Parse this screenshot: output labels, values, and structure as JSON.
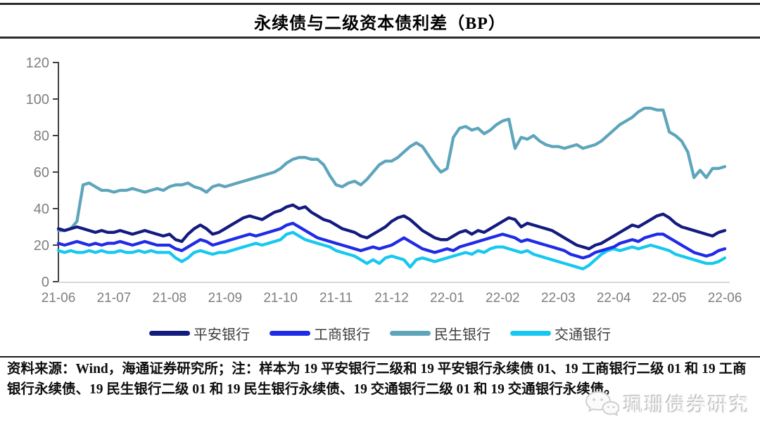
{
  "header": {
    "title": "永续债与二级资本债利差（BP）"
  },
  "chart_data": {
    "type": "line",
    "title": "永续债与二级资本债利差（BP）",
    "x_tick_labels": [
      "21-06",
      "21-07",
      "21-08",
      "21-09",
      "21-10",
      "21-11",
      "21-12",
      "22-01",
      "22-02",
      "22-03",
      "22-04",
      "22-05",
      "22-06"
    ],
    "y_ticks": [
      0,
      20,
      40,
      60,
      80,
      100,
      120
    ],
    "ylim": [
      0,
      120
    ],
    "grid": false,
    "legend_position": "bottom",
    "axis_color": "#404040",
    "tick_label_color": "#7f7f7f",
    "baseline_color": "#d9d9d9",
    "series": [
      {
        "name": "平安银行",
        "color": "#141B7F",
        "values": [
          29,
          28,
          29,
          30,
          29,
          28,
          27,
          28,
          27,
          27,
          28,
          27,
          26,
          27,
          28,
          27,
          26,
          25,
          26,
          23,
          22,
          26,
          29,
          31,
          29,
          26,
          27,
          29,
          31,
          33,
          35,
          36,
          35,
          34,
          36,
          38,
          39,
          41,
          42,
          40,
          41,
          38,
          36,
          34,
          33,
          31,
          29,
          28,
          27,
          25,
          24,
          26,
          28,
          30,
          33,
          35,
          36,
          34,
          31,
          28,
          26,
          24,
          23,
          23,
          25,
          27,
          28,
          26,
          28,
          27,
          29,
          31,
          33,
          35,
          34,
          30,
          32,
          31,
          30,
          29,
          28,
          26,
          24,
          22,
          20,
          19,
          18,
          20,
          21,
          23,
          25,
          27,
          29,
          31,
          30,
          32,
          34,
          36,
          37,
          35,
          32,
          30,
          29,
          28,
          27,
          26,
          25,
          27,
          28
        ]
      },
      {
        "name": "工商银行",
        "color": "#1F2BE6",
        "values": [
          21,
          20,
          21,
          22,
          21,
          20,
          21,
          20,
          21,
          21,
          22,
          21,
          20,
          21,
          22,
          21,
          20,
          20,
          20,
          18,
          17,
          19,
          21,
          23,
          22,
          20,
          21,
          22,
          23,
          24,
          25,
          26,
          25,
          26,
          27,
          28,
          29,
          31,
          32,
          30,
          28,
          26,
          24,
          23,
          22,
          21,
          20,
          19,
          18,
          17,
          18,
          19,
          18,
          19,
          20,
          22,
          24,
          22,
          20,
          18,
          17,
          16,
          17,
          18,
          17,
          19,
          20,
          21,
          22,
          23,
          24,
          25,
          26,
          25,
          24,
          22,
          23,
          22,
          21,
          20,
          19,
          18,
          17,
          15,
          14,
          13,
          14,
          16,
          17,
          18,
          19,
          21,
          22,
          23,
          22,
          24,
          25,
          26,
          26,
          24,
          22,
          20,
          18,
          16,
          15,
          14,
          15,
          17,
          18
        ]
      },
      {
        "name": "民生银行",
        "color": "#5EA5BC",
        "values": [
          28,
          28,
          29,
          33,
          53,
          54,
          52,
          50,
          50,
          49,
          50,
          50,
          51,
          50,
          49,
          50,
          51,
          50,
          52,
          53,
          53,
          54,
          52,
          51,
          49,
          52,
          53,
          52,
          53,
          54,
          55,
          56,
          57,
          58,
          59,
          60,
          62,
          65,
          67,
          68,
          68,
          67,
          67,
          64,
          58,
          53,
          52,
          54,
          55,
          53,
          56,
          60,
          64,
          66,
          66,
          68,
          71,
          74,
          76,
          74,
          69,
          64,
          60,
          62,
          79,
          84,
          85,
          83,
          84,
          81,
          83,
          86,
          88,
          89,
          73,
          79,
          78,
          80,
          77,
          75,
          74,
          74,
          73,
          74,
          75,
          73,
          74,
          75,
          77,
          80,
          83,
          86,
          88,
          90,
          93,
          95,
          95,
          94,
          94,
          82,
          80,
          77,
          71,
          57,
          61,
          57,
          62,
          62,
          63
        ]
      },
      {
        "name": "交通银行",
        "color": "#16C8F0",
        "values": [
          17,
          16,
          17,
          16,
          16,
          17,
          16,
          17,
          16,
          16,
          17,
          16,
          16,
          17,
          16,
          17,
          16,
          16,
          16,
          13,
          11,
          13,
          16,
          17,
          16,
          15,
          16,
          16,
          17,
          18,
          19,
          20,
          21,
          20,
          21,
          22,
          23,
          26,
          27,
          25,
          23,
          22,
          21,
          20,
          19,
          17,
          16,
          15,
          14,
          12,
          10,
          12,
          10,
          13,
          14,
          13,
          12,
          8,
          12,
          13,
          12,
          11,
          12,
          13,
          14,
          15,
          16,
          15,
          17,
          16,
          18,
          19,
          19,
          18,
          17,
          16,
          17,
          15,
          14,
          13,
          12,
          11,
          10,
          9,
          8,
          7,
          9,
          12,
          15,
          17,
          18,
          17,
          18,
          19,
          18,
          19,
          20,
          19,
          18,
          17,
          15,
          14,
          13,
          12,
          11,
          10,
          10,
          11,
          13
        ]
      }
    ]
  },
  "footer": {
    "source_note": "资料来源：Wind，海通证券研究所；注：样本为 19 平安银行二级和 19 平安银行永续债 01、19 工商银行二级 01 和 19 工商银行永续债、19 民生银行二级 01 和 19 民生银行永续债、19 交通银行二级 01 和 19 交通银行永续债。"
  },
  "watermark": {
    "label": "珮珊债券研究",
    "icon": "wechat-chat-bubbles-icon"
  }
}
